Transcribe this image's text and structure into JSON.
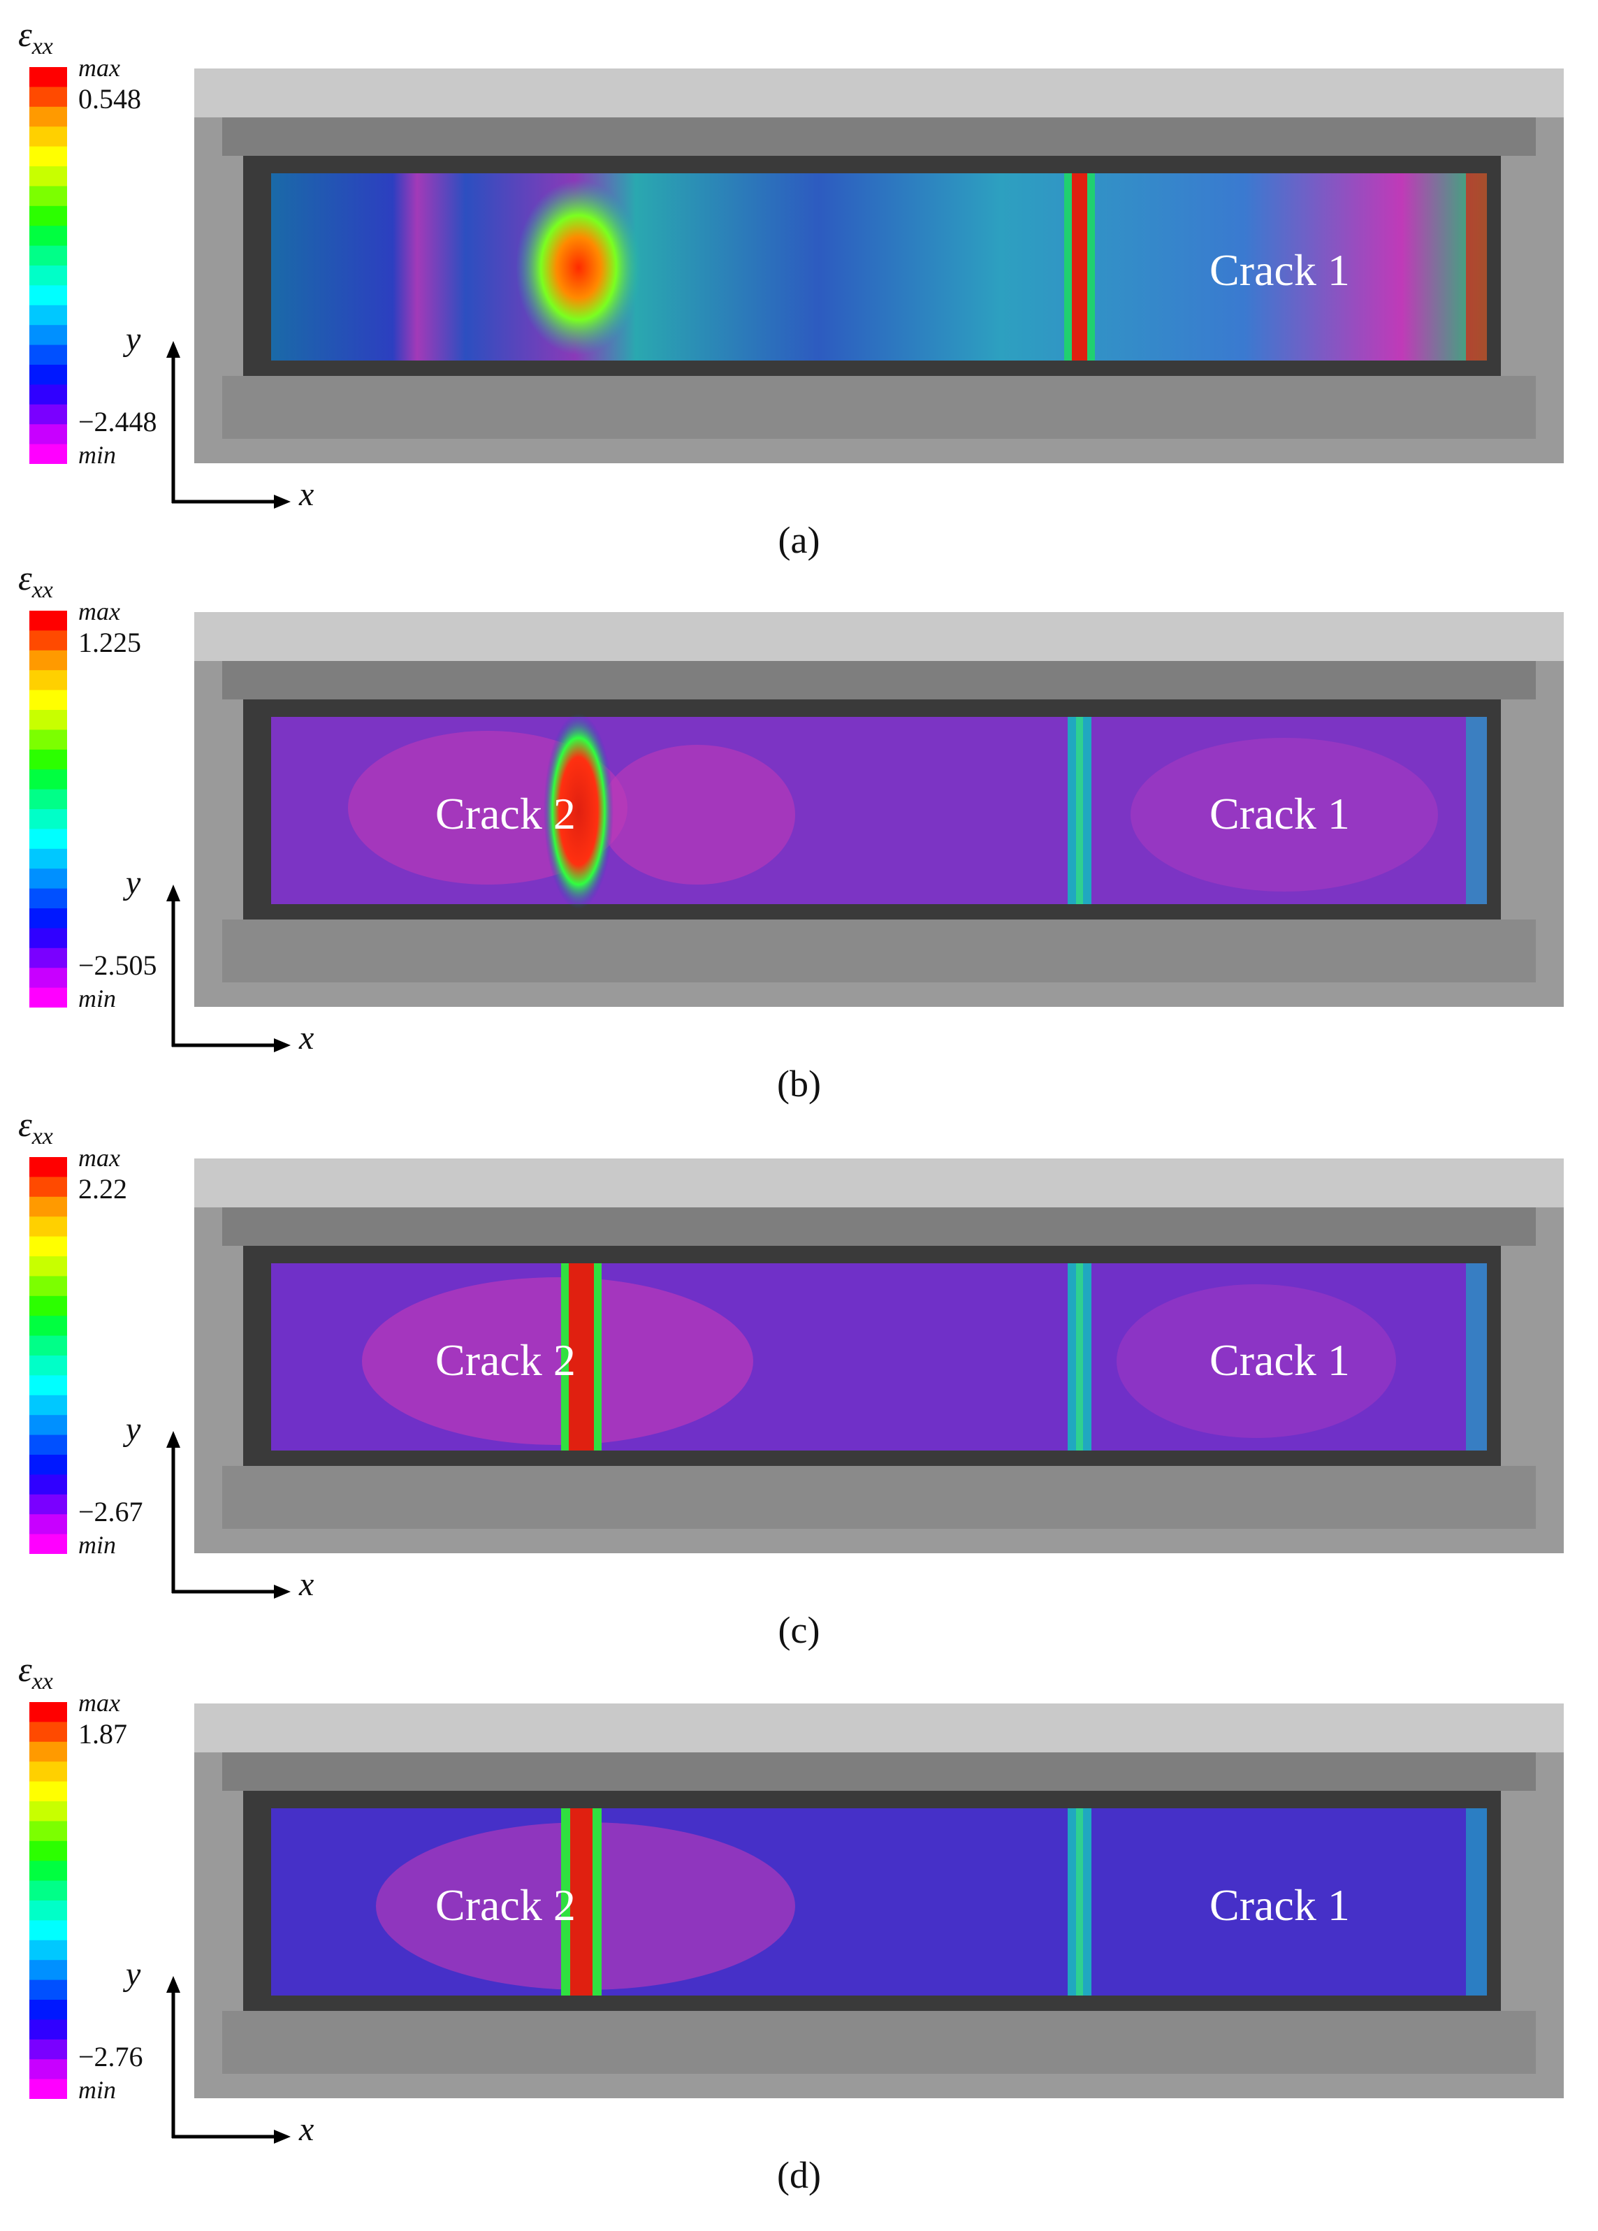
{
  "panels": [
    {
      "id": "a",
      "symbol": "ε",
      "symbol_sub": "xx",
      "max_label": "max",
      "min_label": "min",
      "max_value": "0.548",
      "min_value": "−2.448",
      "x_axis": "x",
      "y_axis": "y",
      "caption": "(a)",
      "cracks": [
        "Crack 1"
      ]
    },
    {
      "id": "b",
      "symbol": "ε",
      "symbol_sub": "xx",
      "max_label": "max",
      "min_label": "min",
      "max_value": "1.225",
      "min_value": "−2.505",
      "x_axis": "x",
      "y_axis": "y",
      "caption": "(b)",
      "cracks": [
        "Crack 2",
        "Crack 1"
      ]
    },
    {
      "id": "c",
      "symbol": "ε",
      "symbol_sub": "xx",
      "max_label": "max",
      "min_label": "min",
      "max_value": "2.22",
      "min_value": "−2.67",
      "x_axis": "x",
      "y_axis": "y",
      "caption": "(c)",
      "cracks": [
        "Crack 2",
        "Crack 1"
      ]
    },
    {
      "id": "d",
      "symbol": "ε",
      "symbol_sub": "xx",
      "max_label": "max",
      "min_label": "min",
      "max_value": "1.87",
      "min_value": "−2.76",
      "x_axis": "x",
      "y_axis": "y",
      "caption": "(d)",
      "cracks": [
        "Crack 2",
        "Crack 1"
      ]
    }
  ],
  "colorbar_colors": [
    "#ff0000",
    "#ff4a00",
    "#ff9a00",
    "#ffd000",
    "#ffff00",
    "#c8ff00",
    "#7cff00",
    "#2cff00",
    "#00ff40",
    "#00ff88",
    "#00ffc8",
    "#00ffff",
    "#00c8ff",
    "#0090ff",
    "#0050ff",
    "#0018ff",
    "#3000ff",
    "#7a00ff",
    "#c800ff",
    "#ff00ff"
  ]
}
